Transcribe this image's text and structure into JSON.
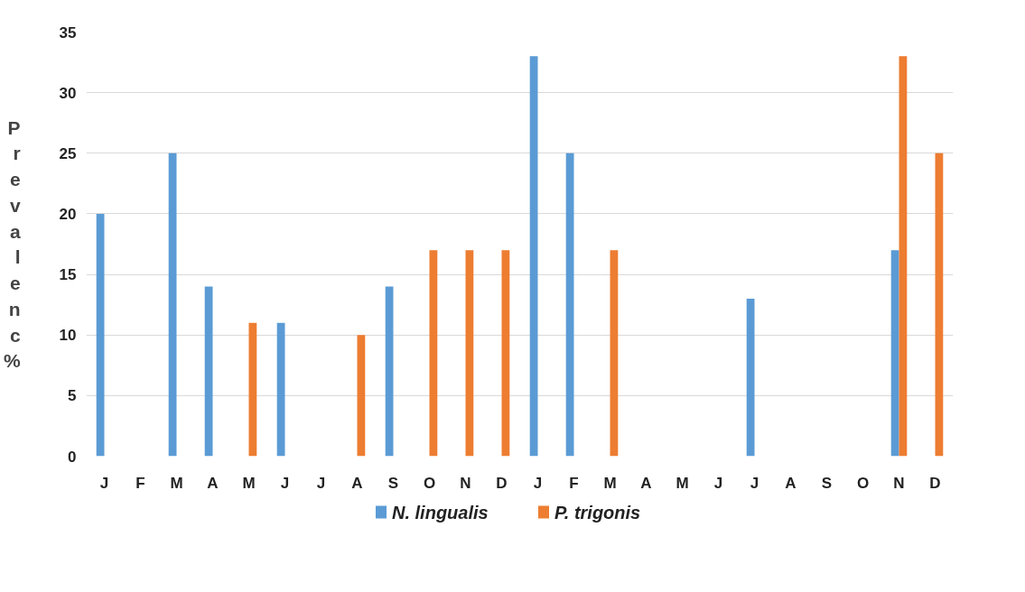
{
  "chart_data": {
    "type": "bar",
    "ylabel": "Prevalenc%",
    "categories": [
      "J",
      "F",
      "M",
      "A",
      "M",
      "J",
      "J",
      "A",
      "S",
      "O",
      "N",
      "D",
      "J",
      "F",
      "M",
      "A",
      "M",
      "J",
      "J",
      "A",
      "S",
      "O",
      "N",
      "D"
    ],
    "series": [
      {
        "name": "N. lingualis",
        "color": "#5b9bd5",
        "values": [
          20,
          null,
          25,
          14,
          null,
          11,
          null,
          null,
          14,
          null,
          null,
          null,
          33,
          25,
          null,
          null,
          null,
          null,
          13,
          null,
          null,
          null,
          17,
          null
        ]
      },
      {
        "name": "P. trigonis",
        "color": "#ed7d31",
        "values": [
          null,
          null,
          null,
          null,
          11,
          null,
          null,
          10,
          null,
          17,
          17,
          17,
          null,
          null,
          17,
          null,
          null,
          null,
          null,
          null,
          null,
          null,
          33,
          25
        ]
      }
    ],
    "ylim": [
      0,
      35
    ],
    "yticks": [
      0,
      5,
      10,
      15,
      20,
      25,
      30,
      35
    ],
    "grid": "y",
    "legend": "bottom"
  }
}
